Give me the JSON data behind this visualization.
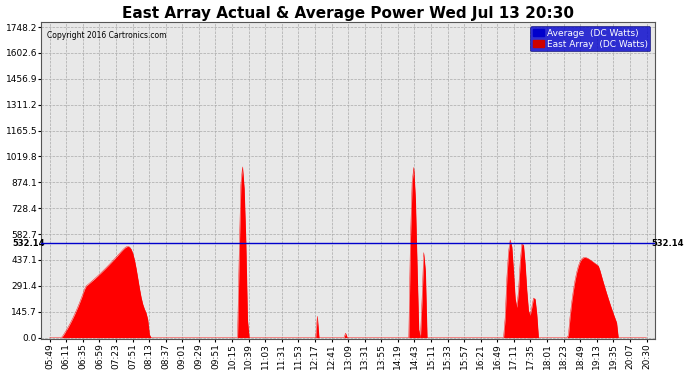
{
  "title": "East Array Actual & Average Power Wed Jul 13 20:30",
  "copyright": "Copyright 2016 Cartronics.com",
  "legend_avg_label": "Average  (DC Watts)",
  "legend_east_label": "East Array  (DC Watts)",
  "legend_avg_color": "#0000cc",
  "legend_east_color": "#cc0000",
  "ymax": 1748.2,
  "ymin": 0.0,
  "yticks": [
    0.0,
    145.7,
    291.4,
    437.1,
    582.7,
    728.4,
    874.1,
    1019.8,
    1165.5,
    1311.2,
    1456.9,
    1602.6,
    1748.2
  ],
  "ytick_labels": [
    "0.0",
    "145.7",
    "291.4",
    "437.1",
    "582.7",
    "728.4",
    "874.1",
    "1019.8",
    "1165.5",
    "1311.2",
    "1456.9",
    "1602.6",
    "1748.2"
  ],
  "hline_value": 532.14,
  "hline_label": "532.14",
  "background_color": "#ffffff",
  "plot_bg_color": "#e8e8e8",
  "grid_color": "#aaaaaa",
  "fill_color": "#ff0000",
  "line_color": "#ff0000",
  "avg_line_color": "#0000cc",
  "title_fontsize": 11,
  "tick_fontsize": 6.5,
  "num_points": 360,
  "time_labels": [
    "05:49",
    "06:11",
    "06:35",
    "06:59",
    "07:23",
    "07:51",
    "08:13",
    "08:37",
    "09:01",
    "09:29",
    "09:51",
    "10:15",
    "10:39",
    "11:03",
    "11:31",
    "11:53",
    "12:17",
    "12:41",
    "13:09",
    "13:31",
    "13:55",
    "14:19",
    "14:43",
    "15:11",
    "15:33",
    "15:57",
    "16:21",
    "16:49",
    "17:11",
    "17:35",
    "18:01",
    "18:23",
    "18:49",
    "19:13",
    "19:35",
    "20:07",
    "20:30"
  ]
}
